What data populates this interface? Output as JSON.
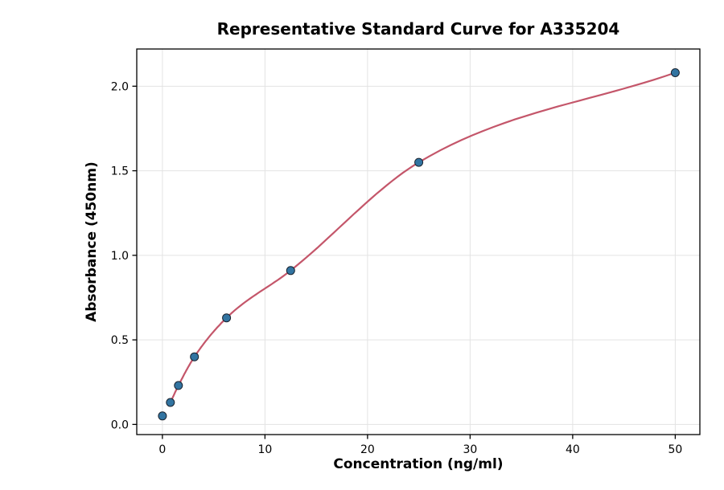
{
  "chart_data": {
    "type": "scatter",
    "title": "Representative Standard Curve for A335204",
    "xlabel": "Concentration (ng/ml)",
    "ylabel": "Absorbance (450nm)",
    "points": {
      "x": [
        0,
        0.78,
        1.56,
        3.125,
        6.25,
        12.5,
        25,
        50
      ],
      "y": [
        0.05,
        0.13,
        0.23,
        0.4,
        0.63,
        0.91,
        1.55,
        2.08
      ]
    },
    "fit_curve": {
      "style": "smooth-through-points",
      "start_index": 1
    },
    "xticks": [
      0,
      10,
      20,
      30,
      40,
      50
    ],
    "xtick_labels": [
      "0",
      "10",
      "20",
      "30",
      "40",
      "50"
    ],
    "yticks": [
      0.0,
      0.5,
      1.0,
      1.5,
      2.0
    ],
    "ytick_labels": [
      "0.0",
      "0.5",
      "1.0",
      "1.5",
      "2.0"
    ],
    "xlim": [
      -2.5,
      52.4
    ],
    "ylim": [
      -0.06,
      2.22
    ],
    "grid": true,
    "legend": "none",
    "colors": {
      "background": "#ffffff",
      "point_fill": "#3274a1",
      "point_edge": "#1a2430",
      "curve": "#c4566a",
      "grid": "#e3e3e3",
      "spine": "#000000",
      "tick_text": "#000000"
    }
  }
}
